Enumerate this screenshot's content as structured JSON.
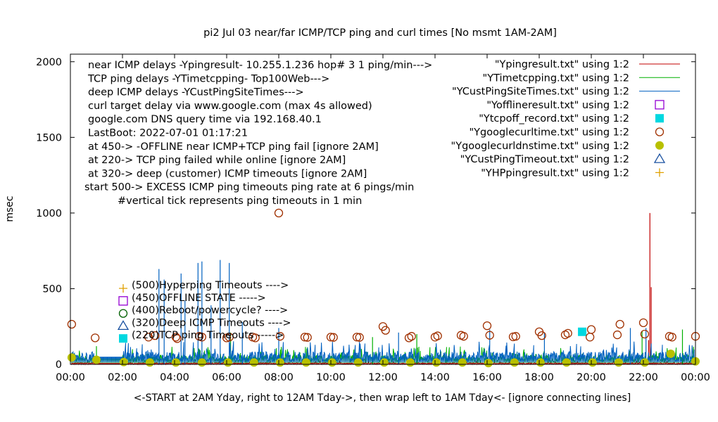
{
  "chart_data": {
    "type": "line",
    "title": "pi2  Jul 03  near/far ICMP/TCP ping and curl times [No msmt 1AM-2AM]",
    "xlabel": "<-START at 2AM Yday, right to 12AM Tday->, then wrap left to 1AM Tday<- [ignore connecting lines]",
    "ylabel": "msec",
    "xlim": [
      0,
      24
    ],
    "ylim": [
      0,
      2050
    ],
    "x_ticks": [
      "00:00",
      "02:00",
      "04:00",
      "06:00",
      "08:00",
      "10:00",
      "12:00",
      "14:00",
      "16:00",
      "18:00",
      "20:00",
      "22:00",
      "00:00"
    ],
    "y_ticks": [
      "0",
      "500",
      "1000",
      "1500",
      "2000"
    ],
    "grid": false,
    "legend_position": "top-right",
    "annotations": [
      "near ICMP delays -Ypingresult- 10.255.1.236 hop# 3 1 ping/min--->",
      "TCP ping delays -YTimetcpping- Top100Web--->",
      "deep ICMP delays -YCustPingSiteTimes--->",
      "curl target delay via www.google.com (max 4s allowed)",
      "google.com DNS query time via 192.168.40.1",
      "LastBoot: 2022-07-01 01:17:21",
      "at 450-> -OFFLINE near ICMP+TCP ping fail [ignore 2AM]",
      "at 220-> TCP ping failed while online [ignore 2AM]",
      "at 320-> deep (customer) ICMP timeouts [ignore 2AM]",
      "start 500-> EXCESS ICMP ping timeouts ping rate at 6 pings/min",
      "#vertical tick represents ping timeouts in 1 min"
    ],
    "key_labels": [
      "(500)Hyperping Timeouts ---->",
      "(450)OFFLINE STATE ----->",
      "(400)Reboot/powercycle? ---->",
      "(320)Deep ICMP Timeouts ---->",
      "(220)TCP ping Timeouts ----->"
    ],
    "series": [
      {
        "name": "\"Ypingresult.txt\" using 1:2",
        "color": "#c00000",
        "style": "line",
        "baseline": 8,
        "spikes": [
          [
            22.25,
            1000
          ],
          [
            22.3,
            510
          ],
          [
            22.2,
            160
          ]
        ]
      },
      {
        "name": "\"YTimetcpping.txt\" using 1:2",
        "color": "#00b000",
        "style": "line",
        "baseline": 45,
        "spikes": [
          [
            1.0,
            120
          ],
          [
            6.15,
            210
          ],
          [
            11.6,
            180
          ],
          [
            13.3,
            200
          ],
          [
            21.95,
            220
          ],
          [
            23.5,
            230
          ]
        ]
      },
      {
        "name": "\"YCustPingSiteTimes.txt\" using 1:2",
        "color": "#0060c0",
        "style": "line",
        "baseline": 60,
        "spikes": [
          [
            3.4,
            630
          ],
          [
            3.6,
            560
          ],
          [
            4.25,
            600
          ],
          [
            4.4,
            420
          ],
          [
            4.9,
            670
          ],
          [
            5.05,
            680
          ],
          [
            5.4,
            390
          ],
          [
            5.75,
            690
          ],
          [
            6.1,
            670
          ],
          [
            6.6,
            280
          ],
          [
            8.0,
            240
          ],
          [
            12.6,
            210
          ],
          [
            16.1,
            230
          ],
          [
            18.2,
            210
          ],
          [
            21.5,
            240
          ],
          [
            22.1,
            240
          ]
        ]
      },
      {
        "name": "\"Yofflineresult.txt\" using 1:2",
        "color": "#9400d3",
        "style": "open-square",
        "points": []
      },
      {
        "name": "\"Ytcpoff_record.txt\" using 1:2",
        "color": "#00d8e0",
        "style": "filled-square",
        "points": [
          [
            19.65,
            215
          ]
        ]
      },
      {
        "name": "\"Ygooglecurltime.txt\" using 1:2",
        "color": "#a03000",
        "style": "open-circle",
        "points": [
          [
            0.05,
            265
          ],
          [
            0.95,
            175
          ],
          [
            3.0,
            180
          ],
          [
            3.25,
            190
          ],
          [
            4.05,
            180
          ],
          [
            4.1,
            170
          ],
          [
            4.95,
            185
          ],
          [
            5.05,
            180
          ],
          [
            6.0,
            175
          ],
          [
            6.1,
            180
          ],
          [
            7.0,
            180
          ],
          [
            7.1,
            175
          ],
          [
            8.0,
            1000
          ],
          [
            8.05,
            185
          ],
          [
            9.0,
            180
          ],
          [
            9.1,
            178
          ],
          [
            10.0,
            180
          ],
          [
            10.1,
            178
          ],
          [
            11.0,
            180
          ],
          [
            11.1,
            178
          ],
          [
            12.0,
            250
          ],
          [
            12.1,
            225
          ],
          [
            13.0,
            175
          ],
          [
            13.1,
            185
          ],
          [
            14.0,
            180
          ],
          [
            14.1,
            188
          ],
          [
            15.0,
            192
          ],
          [
            15.1,
            185
          ],
          [
            16.0,
            255
          ],
          [
            16.1,
            192
          ],
          [
            17.0,
            182
          ],
          [
            17.1,
            185
          ],
          [
            18.0,
            215
          ],
          [
            18.1,
            190
          ],
          [
            19.0,
            195
          ],
          [
            19.1,
            205
          ],
          [
            20.0,
            230
          ],
          [
            19.95,
            180
          ],
          [
            21.0,
            195
          ],
          [
            21.1,
            265
          ],
          [
            22.0,
            275
          ],
          [
            22.05,
            200
          ],
          [
            23.0,
            185
          ],
          [
            23.1,
            180
          ],
          [
            24.0,
            185
          ]
        ]
      },
      {
        "name": "\"Ygooglecurldnstime.txt\" using 1:2",
        "color": "#b8c000",
        "style": "filled-circle",
        "points": [
          [
            0.05,
            45
          ],
          [
            1.0,
            30
          ],
          [
            2.05,
            15
          ],
          [
            3.05,
            12
          ],
          [
            4.05,
            12
          ],
          [
            5.05,
            12
          ],
          [
            6.05,
            12
          ],
          [
            7.05,
            12
          ],
          [
            8.05,
            12
          ],
          [
            9.05,
            12
          ],
          [
            10.05,
            12
          ],
          [
            11.05,
            12
          ],
          [
            12.05,
            12
          ],
          [
            13.05,
            12
          ],
          [
            14.05,
            12
          ],
          [
            15.05,
            12
          ],
          [
            16.05,
            8
          ],
          [
            17.05,
            12
          ],
          [
            18.05,
            12
          ],
          [
            19.05,
            12
          ],
          [
            20.05,
            12
          ],
          [
            21.05,
            12
          ],
          [
            22.05,
            12
          ],
          [
            23.05,
            70
          ],
          [
            24.0,
            20
          ]
        ]
      },
      {
        "name": "\"YCustPingTimeout.txt\" using 1:2",
        "color": "#1850a0",
        "style": "open-triangle",
        "points": []
      },
      {
        "name": "\"YHPpingresult.txt\" using 1:2",
        "color": "#e0a000",
        "style": "plus",
        "points": []
      }
    ]
  }
}
